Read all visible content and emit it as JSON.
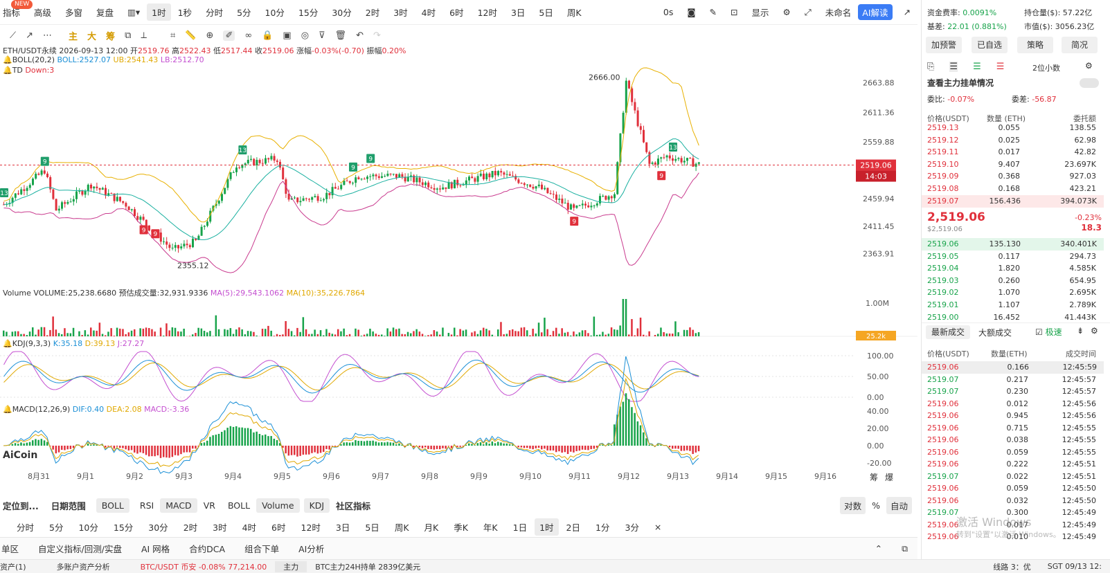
{
  "toolbar": {
    "new_badge": "NEW",
    "items": [
      "指标",
      "高级",
      "多窗",
      "复盘"
    ],
    "intervals": [
      "1时",
      "1秒",
      "分时",
      "5分",
      "10分",
      "15分",
      "30分",
      "2时",
      "3时",
      "4时",
      "6时",
      "12时",
      "3日",
      "5日",
      "周K"
    ],
    "right_items": [
      "0s",
      "显示",
      "未命名",
      "AI解读"
    ]
  },
  "drawbar": {
    "main": "主",
    "large": "大",
    "chip": "筹"
  },
  "chart": {
    "symbol_line": {
      "symbol": "ETH/USDT永续",
      "time": "2026-09-13 12:00",
      "open_l": "开",
      "open": "2519.76",
      "high_l": "高",
      "high": "2522.43",
      "low_l": "低",
      "low": "2517.44",
      "close_l": "收",
      "close": "2519.06",
      "chg_l": "涨幅",
      "chg": "-0.03%(-0.70)",
      "amp_l": "振幅",
      "amp": "0.20%"
    },
    "boll_line": {
      "name": "BOLL(20,2)",
      "mid": "BOLL:2527.07",
      "ub": "UB:2541.43",
      "lb": "LB:2512.70"
    },
    "td_line": {
      "name": "TD",
      "down": "Down:3"
    },
    "price_ticks": [
      "2663.88",
      "2611.36",
      "2559.88",
      "2459.94",
      "2411.45",
      "2363.91"
    ],
    "high_mark": "2666.00",
    "low_mark": "2355.12",
    "current_price": "2519.06",
    "countdown": "14:03",
    "volume_line": {
      "name": "Volume",
      "vol": "VOLUME:25,238.6680",
      "pred": "预估成交量:32,931.9336",
      "ma5": "MA(5):29,543.1062",
      "ma10": "MA(10):35,226.7864"
    },
    "volume_tick": "1.00M",
    "volume_tag": "25.2k",
    "kdj_line": {
      "name": "KDJ(9,3,3)",
      "k": "K:35.18",
      "d": "D:39.13",
      "j": "J:27.27"
    },
    "kdj_ticks": [
      "100.00",
      "50.00",
      "0.00"
    ],
    "macd_line": {
      "name": "MACD(12,26,9)",
      "dif": "DIF:0.40",
      "dea": "DEA:2.08",
      "macd": "MACD:-3.36"
    },
    "macd_ticks": [
      "40.00",
      "20.00",
      "0.00",
      "-20.00"
    ],
    "dates": [
      "8月31",
      "9月1",
      "9月2",
      "9月3",
      "9月4",
      "9月5",
      "9月6",
      "9月7",
      "9月8",
      "9月9",
      "9月10",
      "9月11",
      "9月12",
      "9月13",
      "9月14",
      "9月15",
      "9月16"
    ],
    "corner": [
      "筹",
      "爆"
    ],
    "td_marks": [
      "9",
      "13",
      "9",
      "9",
      "13",
      "9",
      "9",
      "9",
      "9",
      "13"
    ],
    "logo": "AiCoin"
  },
  "timeframes": {
    "items": [
      "分时",
      "5分",
      "10分",
      "15分",
      "30分",
      "2时",
      "3时",
      "4时",
      "6时",
      "12时",
      "3日",
      "5日",
      "周K",
      "月K",
      "季K",
      "年K",
      "1日",
      "1时",
      "2日",
      "1分",
      "3分",
      "×"
    ],
    "active": "1时"
  },
  "indicators": {
    "locate": "定位到...",
    "range": "日期范围",
    "boll": "BOLL",
    "items": [
      "RSI",
      "MACD",
      "VR",
      "BOLL",
      "Volume",
      "KDJ"
    ],
    "community": "社区指标",
    "log": "对数",
    "pct": "%",
    "auto": "自动"
  },
  "bottom": {
    "items": [
      "单区",
      "自定义指标/回测/实盘",
      "AI 网格",
      "合约DCA",
      "组合下单",
      "AI分析"
    ]
  },
  "status": {
    "items": [
      "资产(1)",
      "多账户资产分析",
      "BTC/USDT 币安 -0.08% 77,214.00",
      "主力",
      "BTC主力24H持单 2839亿美元",
      "线路 3：优",
      "SGT 09/13 12:"
    ]
  },
  "right": {
    "funding_l": "资金费率:",
    "funding": "0.0091%",
    "oi_l": "持仓量($):",
    "oi": "57.22亿",
    "basis_l": "基差:",
    "basis": "22.01 (0.881%)",
    "mcap_l": "市值($):",
    "mcap": "3056.23亿",
    "buttons": [
      "加预警",
      "已自选",
      "策略",
      "简况"
    ],
    "decimals": "2位小数",
    "main_orders": "查看主力挂单情况",
    "ratio_l": "委比:",
    "ratio": "-0.07%",
    "diff_l": "委差:",
    "diff": "-56.87",
    "book_headers": [
      "价格(USDT)",
      "数量 (ETH)",
      "委托额"
    ],
    "asks": [
      [
        "2519.13",
        "0.055",
        "138.55"
      ],
      [
        "2519.12",
        "0.025",
        "62.98"
      ],
      [
        "2519.11",
        "0.017",
        "42.82"
      ],
      [
        "2519.10",
        "9.407",
        "23.697K"
      ],
      [
        "2519.09",
        "0.368",
        "927.03"
      ],
      [
        "2519.08",
        "0.168",
        "423.21"
      ],
      [
        "2519.07",
        "156.436",
        "394.073K"
      ]
    ],
    "last_price": "2,519.06",
    "last_usd": "$2,519.06",
    "last_pct": "-0.23%",
    "last_chg": "18.3",
    "bids": [
      [
        "2519.06",
        "135.130",
        "340.401K"
      ],
      [
        "2519.05",
        "0.117",
        "294.73"
      ],
      [
        "2519.04",
        "1.820",
        "4.585K"
      ],
      [
        "2519.03",
        "0.260",
        "654.95"
      ],
      [
        "2519.02",
        "1.070",
        "2.695K"
      ],
      [
        "2519.01",
        "1.107",
        "2.789K"
      ],
      [
        "2519.00",
        "16.452",
        "41.443K"
      ]
    ],
    "trade_tabs": [
      "最新成交",
      "大额成交",
      "极速"
    ],
    "trade_headers": [
      "价格(USDT)",
      "数量(ETH)",
      "成交时间"
    ],
    "trades": [
      [
        "2519.06",
        "0.166",
        "12:45:59",
        "r"
      ],
      [
        "2519.07",
        "0.217",
        "12:45:57",
        "g"
      ],
      [
        "2519.07",
        "0.230",
        "12:45:57",
        "g"
      ],
      [
        "2519.06",
        "0.012",
        "12:45:56",
        "r"
      ],
      [
        "2519.06",
        "0.945",
        "12:45:56",
        "r"
      ],
      [
        "2519.06",
        "0.715",
        "12:45:55",
        "r"
      ],
      [
        "2519.06",
        "0.038",
        "12:45:55",
        "r"
      ],
      [
        "2519.06",
        "0.059",
        "12:45:55",
        "r"
      ],
      [
        "2519.06",
        "0.222",
        "12:45:51",
        "r"
      ],
      [
        "2519.07",
        "0.022",
        "12:45:51",
        "g"
      ],
      [
        "2519.06",
        "0.059",
        "12:45:50",
        "r"
      ],
      [
        "2519.06",
        "0.032",
        "12:45:50",
        "r"
      ],
      [
        "2519.07",
        "0.300",
        "12:45:49",
        "g"
      ],
      [
        "2519.06",
        "0.017",
        "12:45:49",
        "r"
      ],
      [
        "2519.06",
        "0.010",
        "12:45:49",
        "r"
      ]
    ],
    "watermark1": "激活 Windows",
    "watermark2": "转到\"设置\"以激活 Windows。"
  },
  "colors": {
    "up": "#17a34a",
    "down": "#e0303b",
    "ub": "#e8b000",
    "mid": "#1ab0a0",
    "lb": "#c93a8e",
    "accent": "#3b7cf5"
  }
}
